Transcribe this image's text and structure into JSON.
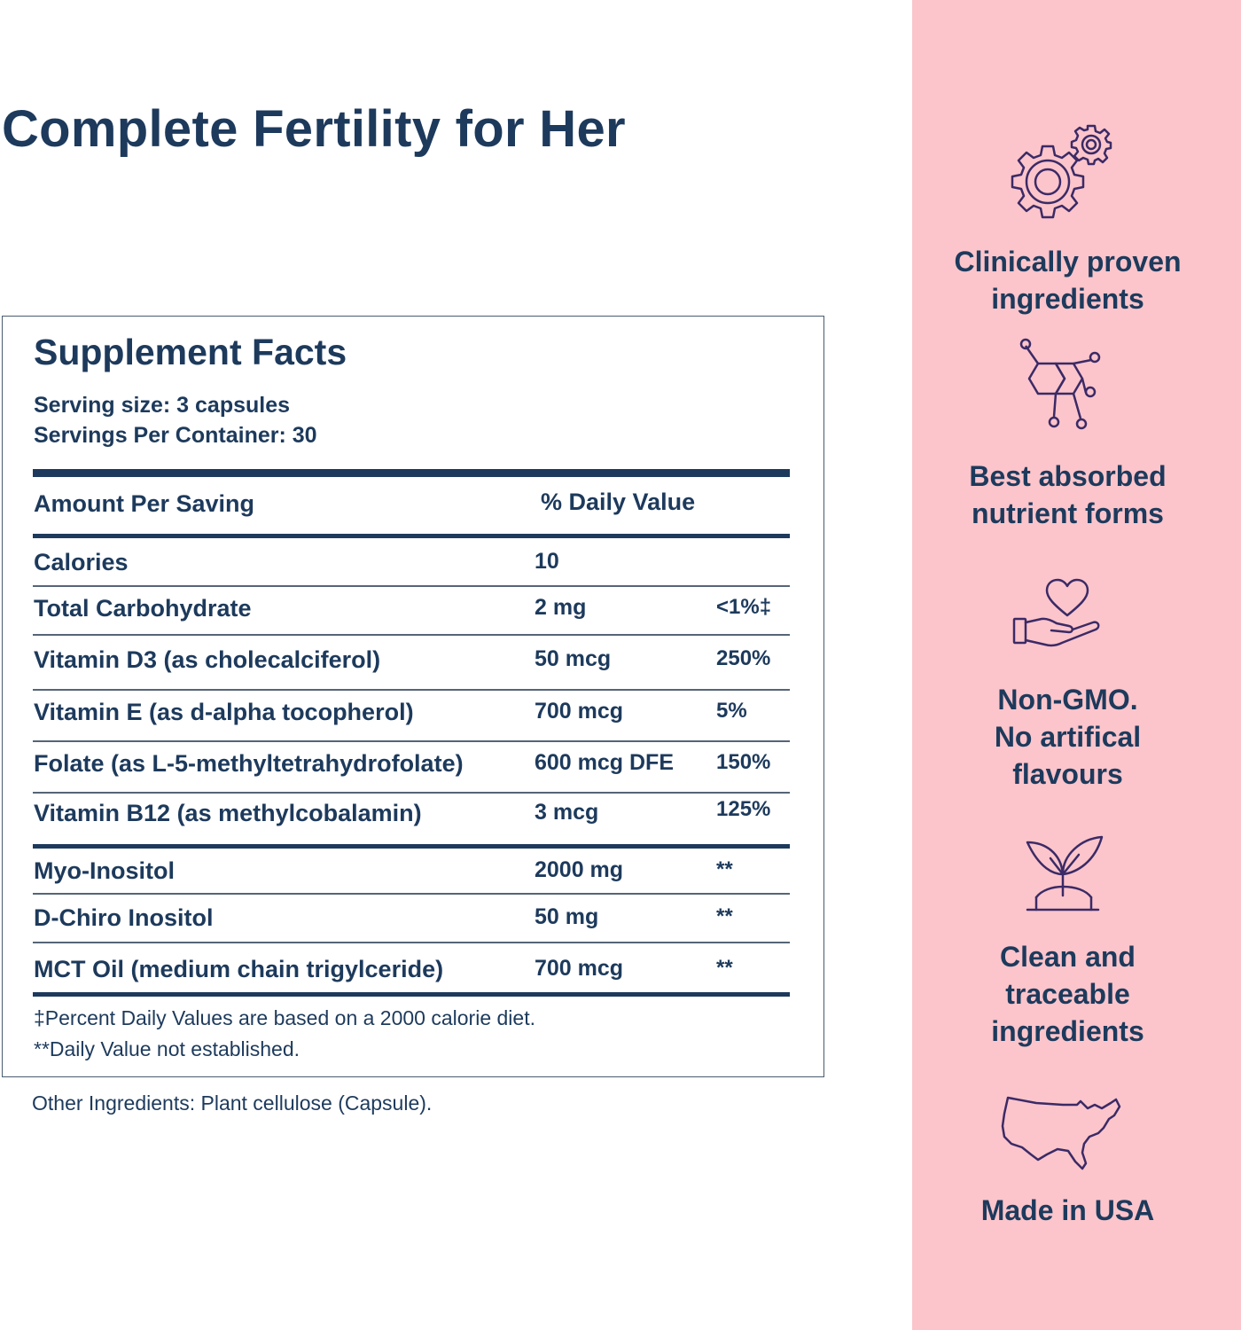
{
  "title": "Complete Fertility for Her",
  "facts": {
    "heading": "Supplement Facts",
    "serving_size": "Serving size: 3 capsules",
    "servings_per_container": "Servings Per Container: 30",
    "header_amount": "Amount Per Saving",
    "header_daily_value": "% Daily Value",
    "rows": [
      {
        "name": "Calories",
        "amount": "10",
        "dv": ""
      },
      {
        "name": "Total Carbohydrate",
        "amount": "2 mg",
        "dv": "<1%‡"
      },
      {
        "name": "Vitamin D3 (as cholecalciferol)",
        "amount": "50 mcg",
        "dv": "250%"
      },
      {
        "name": "Vitamin E (as d-alpha tocopherol)",
        "amount": "700 mcg",
        "dv": "5%"
      },
      {
        "name": "Folate (as L-5-methyltetrahydrofolate)",
        "amount": "600 mcg DFE",
        "dv": "150%"
      },
      {
        "name": "Vitamin B12 (as methylcobalamin)",
        "amount": "3 mcg",
        "dv": "125%"
      },
      {
        "name": "Myo-Inositol",
        "amount": "2000 mg",
        "dv": "**"
      },
      {
        "name": "D-Chiro Inositol",
        "amount": "50 mg",
        "dv": "**"
      },
      {
        "name": "MCT Oil (medium chain trigylceride)",
        "amount": "700 mcg",
        "dv": "**"
      }
    ],
    "footnote_1": "‡Percent Daily Values are based on a 2000 calorie diet.",
    "footnote_2": "**Daily Value not established."
  },
  "other_ingredients": "Other Ingredients: Plant cellulose (Capsule).",
  "features": [
    {
      "icon": "gears-icon",
      "lines": [
        "Clinically proven",
        "ingredients"
      ]
    },
    {
      "icon": "molecule-icon",
      "lines": [
        "Best absorbed",
        "nutrient forms"
      ]
    },
    {
      "icon": "hand-heart-icon",
      "lines": [
        "Non-GMO.",
        "No artifical",
        "flavours"
      ]
    },
    {
      "icon": "sprout-icon",
      "lines": [
        "Clean and",
        "traceable",
        "ingredients"
      ]
    },
    {
      "icon": "usa-map-icon",
      "lines": [
        "Made in USA"
      ]
    }
  ],
  "colors": {
    "navy": "#1d3a5c",
    "pink_panel": "#fbc5cb",
    "icon_purple": "#3b2a66"
  }
}
